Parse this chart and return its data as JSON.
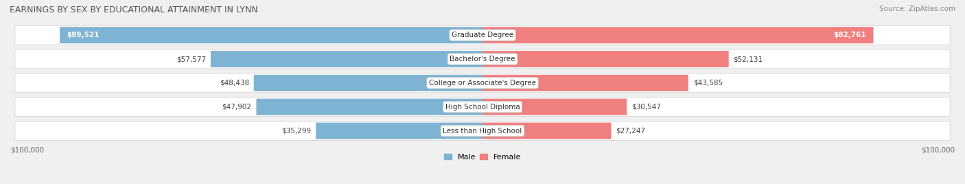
{
  "title": "EARNINGS BY SEX BY EDUCATIONAL ATTAINMENT IN LYNN",
  "source": "Source: ZipAtlas.com",
  "categories": [
    "Less than High School",
    "High School Diploma",
    "College or Associate's Degree",
    "Bachelor's Degree",
    "Graduate Degree"
  ],
  "male_values": [
    35299,
    47902,
    48438,
    57577,
    89521
  ],
  "female_values": [
    27247,
    30547,
    43585,
    52131,
    82761
  ],
  "male_labels": [
    "$35,299",
    "$47,902",
    "$48,438",
    "$57,577",
    "$89,521"
  ],
  "female_labels": [
    "$27,247",
    "$30,547",
    "$43,585",
    "$52,131",
    "$82,761"
  ],
  "male_color": "#7fb3d3",
  "female_color": "#f08080",
  "male_color_dark": "#6aa3c3",
  "female_color_dark": "#e06070",
  "max_value": 100000,
  "background_color": "#f0f0f0",
  "row_bg_color": "#ffffff",
  "title_fontsize": 9,
  "label_fontsize": 8,
  "xlabel_left": "$100,000",
  "xlabel_right": "$100,000",
  "legend_male": "Male",
  "legend_female": "Female"
}
